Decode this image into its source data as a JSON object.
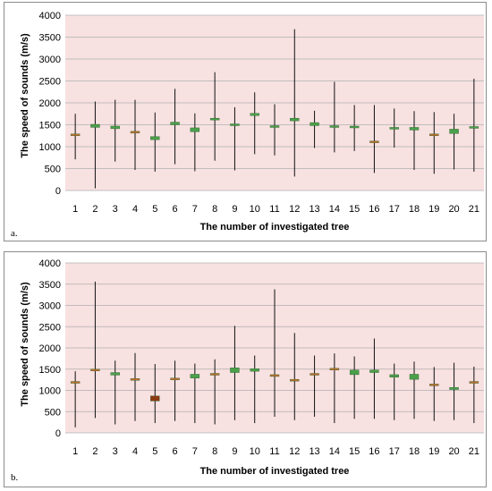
{
  "chart_data": [
    {
      "type": "boxplot",
      "panel_label": "a.",
      "xlabel": "The number of investigated tree",
      "ylabel": "The speed of sounds (m/s)",
      "ylim": [
        0,
        4000
      ],
      "y_ticks": [
        "0",
        "500",
        "1000",
        "1500",
        "2000",
        "2500",
        "3000",
        "3500",
        "4000"
      ],
      "grid": true,
      "categories": [
        "1",
        "2",
        "3",
        "4",
        "5",
        "6",
        "7",
        "8",
        "9",
        "10",
        "11",
        "12",
        "13",
        "14",
        "15",
        "16",
        "17",
        "18",
        "19",
        "20",
        "21"
      ],
      "min": [
        710,
        50,
        660,
        470,
        430,
        600,
        440,
        680,
        460,
        830,
        800,
        320,
        970,
        870,
        900,
        400,
        980,
        470,
        380,
        480,
        430
      ],
      "max": [
        1750,
        2030,
        2070,
        2070,
        1780,
        2320,
        1760,
        2700,
        1900,
        2240,
        1970,
        3680,
        1820,
        2480,
        1950,
        1950,
        1870,
        1810,
        1790,
        1750,
        2550
      ],
      "box_low": [
        1270,
        1440,
        1410,
        1340,
        1160,
        1500,
        1340,
        1630,
        1480,
        1710,
        1450,
        1590,
        1480,
        1460,
        1450,
        1120,
        1410,
        1380,
        1260,
        1300,
        1420
      ],
      "box_high": [
        1290,
        1510,
        1470,
        1350,
        1230,
        1560,
        1430,
        1650,
        1520,
        1760,
        1480,
        1650,
        1550,
        1480,
        1470,
        1130,
        1440,
        1440,
        1290,
        1400,
        1460
      ],
      "box_color": [
        "#c0702a",
        "#4aa04a",
        "#4aa04a",
        "#c0702a",
        "#4aa04a",
        "#4aa04a",
        "#4aa04a",
        "#4aa04a",
        "#4aa04a",
        "#4aa04a",
        "#4aa04a",
        "#4aa04a",
        "#4aa04a",
        "#4aa04a",
        "#4aa04a",
        "#c0702a",
        "#4aa04a",
        "#4aa04a",
        "#c0702a",
        "#4aa04a",
        "#4aa04a"
      ]
    },
    {
      "type": "boxplot",
      "panel_label": "b.",
      "xlabel": "The number of investigated tree",
      "ylabel": "The speed of sounds (m/s)",
      "ylim": [
        0,
        4000
      ],
      "y_ticks": [
        "0",
        "500",
        "1000",
        "1500",
        "2000",
        "2500",
        "3000",
        "3500",
        "4000"
      ],
      "grid": true,
      "categories": [
        "1",
        "2",
        "3",
        "4",
        "5",
        "6",
        "7",
        "8",
        "9",
        "10",
        "11",
        "12",
        "13",
        "14",
        "15",
        "16",
        "17",
        "18",
        "19",
        "20",
        "21"
      ],
      "min": [
        130,
        350,
        200,
        280,
        230,
        280,
        230,
        200,
        300,
        230,
        380,
        300,
        380,
        230,
        330,
        330,
        300,
        330,
        280,
        300,
        230
      ],
      "max": [
        1450,
        3560,
        1700,
        1880,
        1620,
        1700,
        1630,
        1730,
        2520,
        1820,
        3380,
        2350,
        1820,
        1870,
        1800,
        2220,
        1630,
        1680,
        1550,
        1650,
        1560
      ],
      "box_low": [
        1190,
        1480,
        1360,
        1260,
        750,
        1260,
        1290,
        1380,
        1420,
        1450,
        1350,
        1230,
        1370,
        1480,
        1370,
        1420,
        1310,
        1260,
        1130,
        1020,
        1190
      ],
      "box_high": [
        1210,
        1500,
        1420,
        1280,
        870,
        1290,
        1380,
        1400,
        1530,
        1510,
        1370,
        1260,
        1400,
        1520,
        1480,
        1480,
        1370,
        1380,
        1150,
        1070,
        1210
      ],
      "box_color": [
        "#c0702a",
        "#c0702a",
        "#4aa04a",
        "#c0702a",
        "#8b3a12",
        "#c0702a",
        "#4aa04a",
        "#c0702a",
        "#4aa04a",
        "#4aa04a",
        "#c0702a",
        "#c0702a",
        "#c0702a",
        "#c0702a",
        "#4aa04a",
        "#4aa04a",
        "#4aa04a",
        "#4aa04a",
        "#c0702a",
        "#4aa04a",
        "#c0702a"
      ]
    }
  ],
  "colors": {
    "plot_background": "#f8e1e1",
    "gridline": "#b0b0b0",
    "whisker": "#111111"
  }
}
